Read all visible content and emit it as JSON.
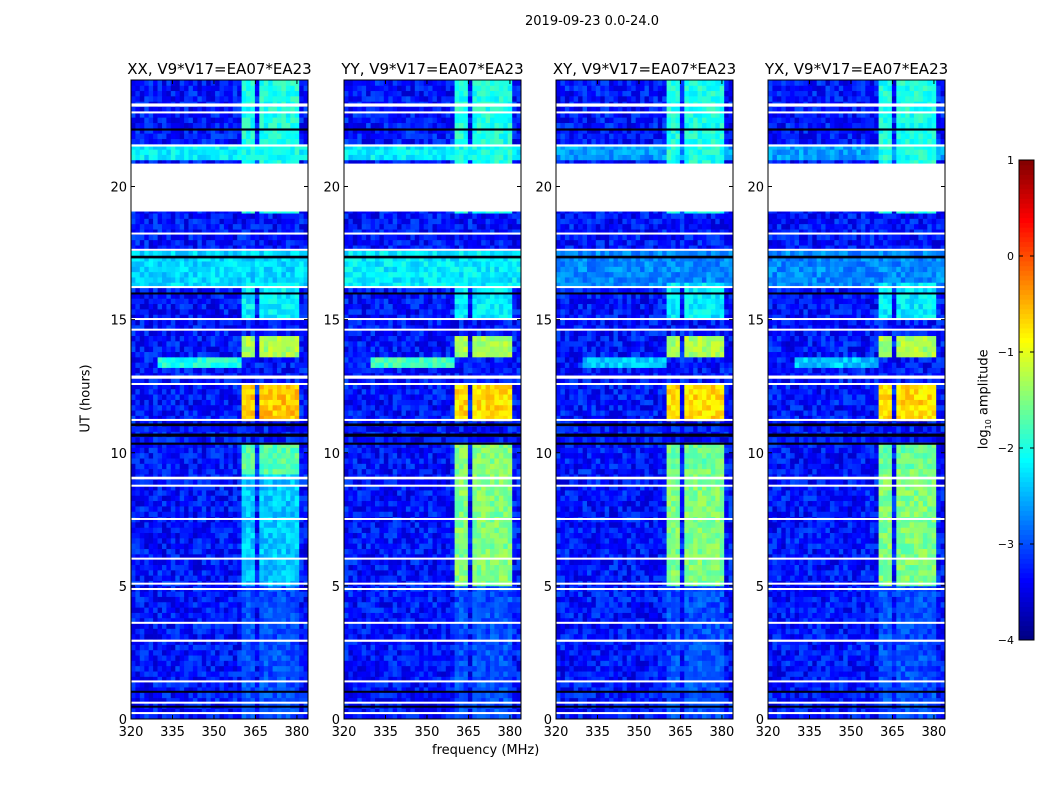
{
  "chart_data": {
    "type": "heatmap",
    "title": "2019-09-23 0.0-24.0",
    "xlabel": "frequency (MHz)",
    "ylabel": "UT (hours)",
    "xlim": [
      320,
      384
    ],
    "ylim": [
      0,
      24
    ],
    "xticks": [
      320,
      335,
      350,
      365,
      380
    ],
    "yticks": [
      0,
      5,
      10,
      15,
      20
    ],
    "panels": [
      {
        "title": "XX, V9*V17=EA07*EA23"
      },
      {
        "title": "YY, V9*V17=EA07*EA23"
      },
      {
        "title": "XY, V9*V17=EA07*EA23"
      },
      {
        "title": "YX, V9*V17=EA07*EA23"
      }
    ],
    "colorbar": {
      "label": "log10 amplitude",
      "label_main": "log",
      "label_sub": "10",
      "label_rest": " amplitude",
      "range": [
        -4,
        1
      ],
      "ticks": [
        "1",
        "0",
        "−1",
        "−2",
        "−3",
        "−4"
      ],
      "colormap": "jet"
    },
    "background_level": -3.3,
    "rfi_subbands_mhz": [
      [
        360.7,
        365.5
      ],
      [
        366.5,
        370.5
      ],
      [
        371.3,
        375.3
      ],
      [
        376.4,
        380.2
      ]
    ],
    "regions": [
      {
        "t": [
          0,
          5.0
        ],
        "f": "subbands",
        "levels": [
          -3.0,
          -3.0,
          -3.0,
          -3.0
        ]
      },
      {
        "t": [
          5.0,
          9.3
        ],
        "f": "subbands",
        "levels": [
          -2.4,
          -1.5,
          -1.5,
          -1.5
        ]
      },
      {
        "t": [
          9.3,
          10.3
        ],
        "f": "subbands",
        "levels": [
          -1.7,
          -1.5,
          -1.6,
          -1.6
        ]
      },
      {
        "t": [
          11.3,
          12.6
        ],
        "f": "subbands",
        "levels": [
          -0.6,
          -0.7,
          -0.7,
          -0.7
        ]
      },
      {
        "t": [
          13.7,
          14.3
        ],
        "f": "subbands",
        "levels": [
          -1.3,
          -1.3,
          -1.3,
          -1.3
        ]
      },
      {
        "t": [
          15.0,
          16.3
        ],
        "f": "subbands",
        "levels": [
          -2.2,
          -2.2,
          -2.2,
          -2.2
        ]
      },
      {
        "t": [
          16.3,
          17.5
        ],
        "f": [
          320,
          384
        ],
        "levels": [
          -2.3,
          -2.2,
          -2.7,
          -2.7
        ]
      },
      {
        "t": [
          13.2,
          13.7
        ],
        "f": [
          330,
          360
        ],
        "levels": [
          -2.0,
          -1.8,
          -2.4,
          -2.4
        ]
      },
      {
        "t": [
          19.1,
          24.0
        ],
        "f": "subbands",
        "levels": [
          -2.0,
          -2.0,
          -2.0,
          -2.0
        ]
      },
      {
        "t": [
          21.0,
          21.5
        ],
        "f": [
          320,
          384
        ],
        "levels": [
          -2.2,
          -2.2,
          -2.6,
          -2.6
        ]
      }
    ],
    "flagged_hours": [
      [
        19.06,
        20.86
      ],
      [
        23.0,
        23.12
      ],
      [
        22.75,
        22.82
      ],
      [
        21.5,
        21.58
      ],
      [
        18.2,
        18.27
      ],
      [
        17.6,
        17.66
      ],
      [
        16.2,
        16.26
      ],
      [
        15.0,
        15.06
      ],
      [
        14.6,
        14.66
      ],
      [
        12.78,
        12.9
      ],
      [
        12.55,
        12.62
      ],
      [
        11.2,
        11.27
      ],
      [
        9.0,
        9.1
      ],
      [
        8.75,
        8.8
      ],
      [
        7.5,
        7.55
      ],
      [
        6.0,
        6.06
      ],
      [
        5.05,
        5.12
      ],
      [
        4.85,
        4.92
      ],
      [
        3.6,
        3.65
      ],
      [
        2.9,
        2.98
      ],
      [
        1.4,
        1.45
      ],
      [
        0.6,
        0.65
      ],
      [
        0.2,
        0.26
      ]
    ],
    "zero_hours": [
      [
        22.1,
        22.18
      ],
      [
        17.3,
        17.4
      ],
      [
        15.95,
        16.02
      ],
      [
        11.0,
        11.1
      ],
      [
        10.6,
        10.72
      ],
      [
        10.3,
        10.38
      ],
      [
        1.0,
        1.06
      ],
      [
        0.45,
        0.5
      ]
    ]
  }
}
